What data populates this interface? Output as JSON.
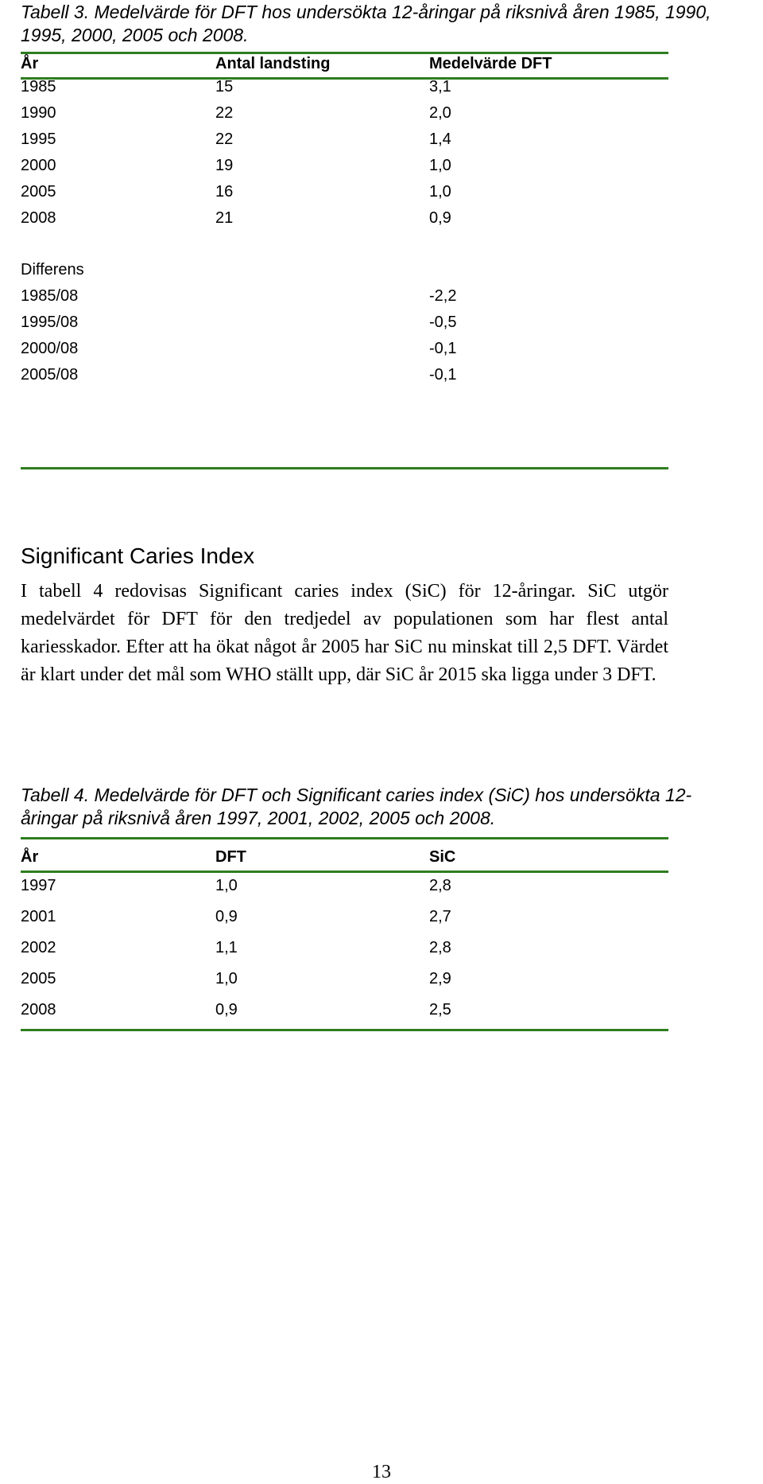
{
  "table3": {
    "caption": "Tabell 3. Medelvärde för DFT hos undersökta 12-åringar på riksnivå åren 1985, 1990, 1995, 2000, 2005 och 2008.",
    "headers": [
      "År",
      "Antal landsting",
      "Medelvärde DFT"
    ],
    "rows": [
      [
        "1985",
        "15",
        "3,1"
      ],
      [
        "1990",
        "22",
        "2,0"
      ],
      [
        "1995",
        "22",
        "1,4"
      ],
      [
        "2000",
        "19",
        "1,0"
      ],
      [
        "2005",
        "16",
        "1,0"
      ],
      [
        "2008",
        "21",
        "0,9"
      ]
    ],
    "diff_label": "Differens",
    "diff_rows": [
      [
        "1985/08",
        "-2,2"
      ],
      [
        "1995/08",
        "-0,5"
      ],
      [
        "2000/08",
        "-0,1"
      ],
      [
        "2005/08",
        "-0,1"
      ]
    ]
  },
  "section": {
    "heading": "Significant Caries Index",
    "body": "I tabell 4 redovisas Significant caries index (SiC) för 12-åringar. SiC utgör medelvärdet för DFT för den tredjedel av populationen som har flest antal kariesskador. Efter att ha ökat något år 2005 har SiC nu minskat till 2,5 DFT. Värdet är klart under det mål som WHO ställt upp, där SiC år 2015 ska ligga under 3 DFT."
  },
  "table4": {
    "caption": "Tabell 4. Medelvärde för DFT och Significant caries index (SiC) hos undersökta 12-åringar på riksnivå åren 1997, 2001, 2002, 2005 och 2008.",
    "headers": [
      "År",
      "DFT",
      "SiC"
    ],
    "rows": [
      [
        "1997",
        "1,0",
        "2,8"
      ],
      [
        "2001",
        "0,9",
        "2,7"
      ],
      [
        "2002",
        "1,1",
        "2,8"
      ],
      [
        "2005",
        "1,0",
        "2,9"
      ],
      [
        "2008",
        "0,9",
        "2,5"
      ]
    ]
  },
  "page_number": "13",
  "colors": {
    "rule": "#2e7d1f",
    "text": "#000000"
  }
}
